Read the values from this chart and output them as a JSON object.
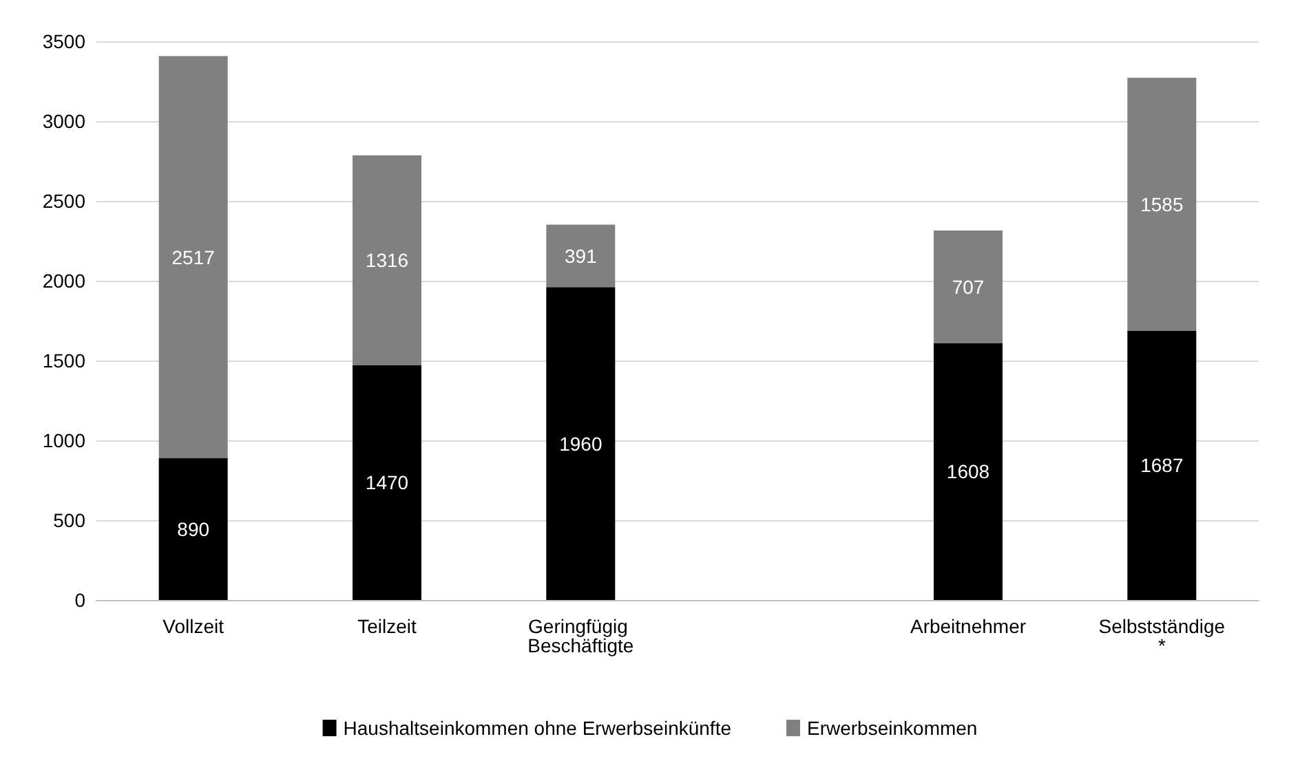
{
  "chart_data": {
    "type": "bar",
    "stacked": true,
    "categories": [
      "Vollzeit",
      "Teilzeit",
      "Geringfügig Beschäftigte",
      null,
      "Arbeitnehmer",
      "Selbstständige*"
    ],
    "series": [
      {
        "name": "Haushaltseinkommen ohne Erwerbseinkünfte",
        "color": "#000000",
        "values": [
          890,
          1470,
          1960,
          null,
          1608,
          1687
        ]
      },
      {
        "name": "Erwerbseinkommen",
        "color": "#808080",
        "values": [
          2517,
          1316,
          391,
          null,
          707,
          1585
        ]
      }
    ],
    "ylim": [
      0,
      3500
    ],
    "yticks": [
      0,
      500,
      1000,
      1500,
      2000,
      2500,
      3000,
      3500
    ],
    "grid": "y",
    "legend": "bottom",
    "data_labels": true
  }
}
